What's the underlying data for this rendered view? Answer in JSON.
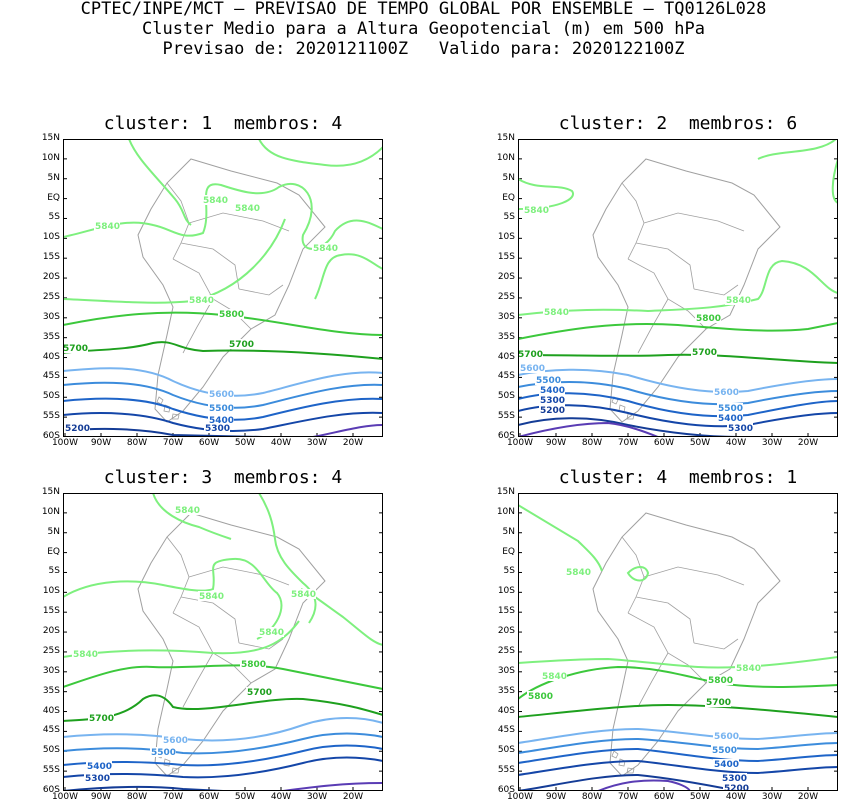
{
  "header": {
    "line1": "CPTEC/INPE/MCT – PREVISAO DE TEMPO GLOBAL POR ENSEMBLE – TQ0126L028",
    "line2": "Cluster Medio para a Altura Geopotencial (m) em 500 hPa",
    "line3": "Previsao de: 2020121100Z   Valido para: 2020122100Z"
  },
  "lat_labels": [
    "15N",
    "10N",
    "5N",
    "EQ",
    "5S",
    "10S",
    "15S",
    "20S",
    "25S",
    "30S",
    "35S",
    "40S",
    "45S",
    "50S",
    "55S",
    "60S"
  ],
  "lon_labels": [
    "100W",
    "90W",
    "80W",
    "70W",
    "60W",
    "50W",
    "40W",
    "30W",
    "20W"
  ],
  "colors": {
    "5840": "#7ef07e",
    "5800": "#3cc83c",
    "5700": "#1ea01e",
    "5600": "#78b4f0",
    "5500": "#3c8cdc",
    "5400": "#1e64c8",
    "5300": "#1446a8",
    "5200": "#143c96",
    "5100": "#5a3cb4",
    "coast": "#a0a0a0"
  },
  "panels": [
    {
      "title": "cluster: 1  membros: 4",
      "labels": {
        "5840": "5840",
        "5800": "5800",
        "5700": "5700",
        "5600": "5600",
        "5500": "5500",
        "5400": "5400",
        "5300": "5300",
        "5200": "5200"
      }
    },
    {
      "title": "cluster: 2  membros: 6",
      "labels": {
        "5840": "5840",
        "5800": "5800",
        "5700": "5700",
        "5600": "5600",
        "5500": "5500",
        "5400": "5400",
        "5300": "5300",
        "5200": "5200"
      }
    },
    {
      "title": "cluster: 3  membros: 4",
      "labels": {
        "5840": "5840",
        "5800": "5800",
        "5700": "5700",
        "5600": "5600",
        "5500": "5500",
        "5400": "5400",
        "5300": "5300"
      }
    },
    {
      "title": "cluster: 4  membros: 1",
      "labels": {
        "5840": "5840",
        "5800": "5800",
        "5700": "5700",
        "5600": "5600",
        "5500": "5500",
        "5400": "5400",
        "5300": "5300",
        "5200": "5200"
      }
    }
  ]
}
